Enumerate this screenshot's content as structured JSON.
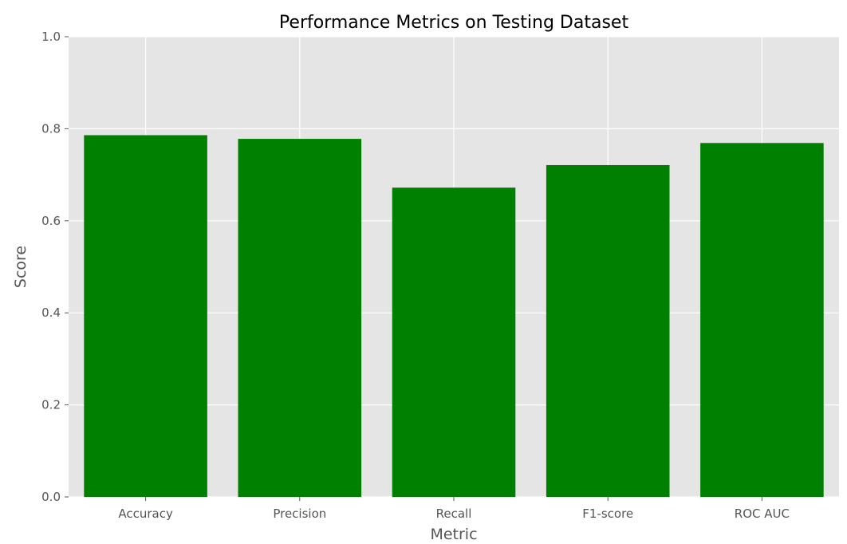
{
  "chart_data": {
    "type": "bar",
    "title": "Performance Metrics on Testing Dataset",
    "xlabel": "Metric",
    "ylabel": "Score",
    "categories": [
      "Accuracy",
      "Precision",
      "Recall",
      "F1-score",
      "ROC AUC"
    ],
    "values": [
      0.786,
      0.778,
      0.672,
      0.721,
      0.769
    ],
    "ylim": [
      0,
      1.0
    ],
    "yticks": [
      "0.0",
      "0.2",
      "0.4",
      "0.6",
      "0.8",
      "1.0"
    ],
    "grid": true,
    "colors": {
      "bar": "#008000",
      "plot_bg": "#e5e5e5",
      "grid": "#ffffff"
    }
  }
}
